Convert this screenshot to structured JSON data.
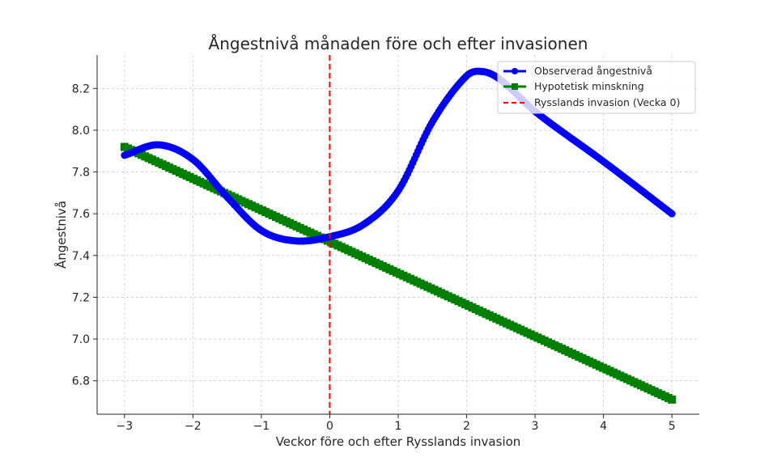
{
  "chart_data": {
    "type": "line",
    "title": "Ångestnivå månaden före och efter invasionen",
    "xlabel": "Veckor före och efter Rysslands invasion",
    "ylabel": "Ångestnivå",
    "xlim": [
      -3.4,
      5.4
    ],
    "ylim": [
      6.64,
      8.36
    ],
    "xticks": [
      -3,
      -2,
      -1,
      0,
      1,
      2,
      3,
      4,
      5
    ],
    "xtick_labels": [
      "−3",
      "−2",
      "−1",
      "0",
      "1",
      "2",
      "3",
      "4",
      "5"
    ],
    "yticks": [
      6.8,
      7.0,
      7.2,
      7.4,
      7.6,
      7.8,
      8.0,
      8.2
    ],
    "ytick_labels": [
      "6.8",
      "7.0",
      "7.2",
      "7.4",
      "7.6",
      "7.8",
      "8.0",
      "8.2"
    ],
    "grid": true,
    "legend_position": "top-right",
    "series": [
      {
        "name": "Observerad ångestnivå",
        "color": "#0000ff",
        "marker": "circle",
        "x": [
          -3,
          -2.5,
          -2,
          -1.5,
          -1,
          -0.5,
          0,
          0.5,
          1,
          1.5,
          2,
          2.25,
          2.5,
          3,
          4,
          5
        ],
        "y": [
          7.88,
          7.93,
          7.86,
          7.68,
          7.52,
          7.47,
          7.49,
          7.55,
          7.71,
          8.04,
          8.26,
          8.28,
          8.24,
          8.09,
          7.85,
          7.6
        ]
      },
      {
        "name": "Hypotetisk minskning",
        "color": "#008000",
        "marker": "square",
        "x": [
          -3,
          5
        ],
        "y": [
          7.92,
          6.71
        ]
      }
    ],
    "vline": {
      "name": "Rysslands invasion (Vecka 0)",
      "x": 0,
      "color": "#ff0000",
      "style": "dashed"
    }
  }
}
